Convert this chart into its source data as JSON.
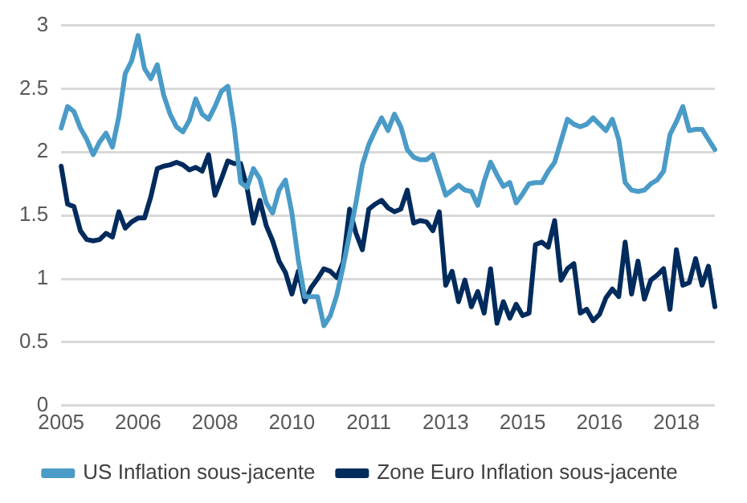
{
  "chart_data": {
    "type": "line",
    "categories": [
      "2005",
      null,
      null,
      null,
      null,
      null,
      null,
      null,
      null,
      null,
      null,
      null,
      "2006",
      null,
      null,
      null,
      null,
      null,
      null,
      null,
      null,
      null,
      null,
      null,
      "2008",
      null,
      null,
      null,
      null,
      null,
      null,
      null,
      null,
      null,
      null,
      null,
      "2010",
      null,
      null,
      null,
      null,
      null,
      null,
      null,
      null,
      null,
      null,
      null,
      "2011",
      null,
      null,
      null,
      null,
      null,
      null,
      null,
      null,
      null,
      null,
      null,
      "2013",
      null,
      null,
      null,
      null,
      null,
      null,
      null,
      null,
      null,
      null,
      null,
      "2015",
      null,
      null,
      null,
      null,
      null,
      null,
      null,
      null,
      null,
      null,
      null,
      "2016",
      null,
      null,
      null,
      null,
      null,
      null,
      null,
      null,
      null,
      null,
      null,
      "2018",
      null,
      null,
      null,
      null,
      null,
      null
    ],
    "ylim": [
      0,
      3
    ],
    "yticks": [
      0,
      0.5,
      1,
      1.5,
      2,
      2.5,
      3
    ],
    "grid": "y",
    "legend": "bottom",
    "marker": "none",
    "line_style": "solid",
    "series": [
      {
        "name": "US Inflation sous-jacente",
        "color": "#4a9bc7",
        "values": [
          2.19,
          2.36,
          2.32,
          2.19,
          2.1,
          1.98,
          2.08,
          2.15,
          2.04,
          2.28,
          2.62,
          2.72,
          2.92,
          2.66,
          2.58,
          2.69,
          2.45,
          2.3,
          2.2,
          2.16,
          2.25,
          2.42,
          2.3,
          2.26,
          2.36,
          2.48,
          2.52,
          2.2,
          1.76,
          1.72,
          1.87,
          1.79,
          1.6,
          1.52,
          1.7,
          1.78,
          1.52,
          1.15,
          0.86,
          0.86,
          0.86,
          0.63,
          0.71,
          0.87,
          1.1,
          1.35,
          1.6,
          1.9,
          2.06,
          2.17,
          2.27,
          2.17,
          2.3,
          2.2,
          2.02,
          1.96,
          1.94,
          1.94,
          1.98,
          1.82,
          1.66,
          1.7,
          1.74,
          1.7,
          1.69,
          1.58,
          1.77,
          1.92,
          1.82,
          1.73,
          1.76,
          1.6,
          1.67,
          1.75,
          1.76,
          1.76,
          1.85,
          1.92,
          2.09,
          2.26,
          2.22,
          2.2,
          2.22,
          2.27,
          2.22,
          2.17,
          2.26,
          2.1,
          1.76,
          1.7,
          1.69,
          1.7,
          1.75,
          1.78,
          1.85,
          2.14,
          2.24,
          2.36,
          2.17,
          2.18,
          2.18,
          2.1,
          2.02
        ]
      },
      {
        "name": "Zone Euro Inflation sous-jacente",
        "color": "#002b5c",
        "values": [
          1.89,
          1.59,
          1.57,
          1.38,
          1.31,
          1.3,
          1.31,
          1.36,
          1.33,
          1.53,
          1.4,
          1.45,
          1.48,
          1.48,
          1.65,
          1.87,
          1.89,
          1.9,
          1.92,
          1.9,
          1.86,
          1.88,
          1.85,
          1.98,
          1.66,
          1.79,
          1.93,
          1.91,
          1.91,
          1.72,
          1.44,
          1.62,
          1.42,
          1.3,
          1.14,
          1.05,
          0.88,
          1.06,
          0.82,
          0.93,
          1,
          1.08,
          1.06,
          1.01,
          1.13,
          1.55,
          1.36,
          1.23,
          1.55,
          1.59,
          1.62,
          1.56,
          1.53,
          1.55,
          1.7,
          1.44,
          1.46,
          1.45,
          1.38,
          1.53,
          0.95,
          1.06,
          0.82,
          0.99,
          0.78,
          0.9,
          0.73,
          1.08,
          0.65,
          0.82,
          0.69,
          0.8,
          0.71,
          0.73,
          1.27,
          1.29,
          1.25,
          1.46,
          0.99,
          1.08,
          1.12,
          0.73,
          0.76,
          0.67,
          0.72,
          0.85,
          0.92,
          0.86,
          1.29,
          0.88,
          1.14,
          0.84,
          0.99,
          1.03,
          1.08,
          0.76,
          1.23,
          0.95,
          0.97,
          1.16,
          0.95,
          1.1,
          0.78
        ]
      }
    ]
  }
}
